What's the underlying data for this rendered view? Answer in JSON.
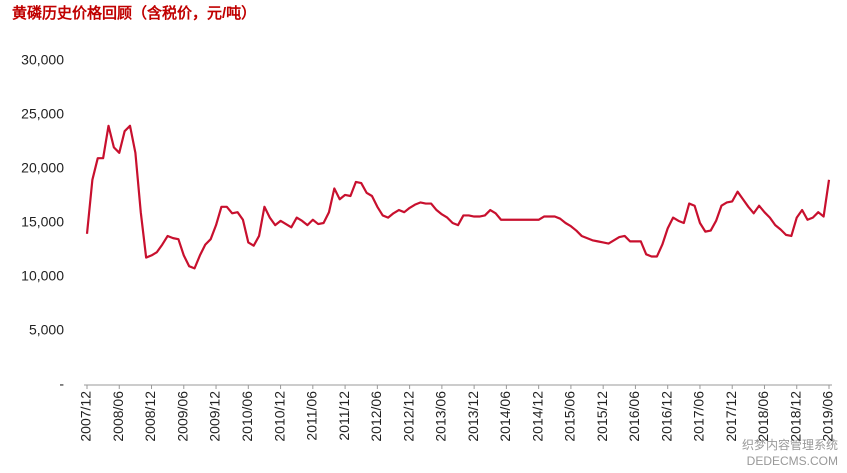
{
  "chart_data": {
    "type": "line",
    "title": "黄磷历史价格回顾（含税价，元/吨）",
    "categories": [
      "2007/12",
      null,
      null,
      null,
      null,
      null,
      "2008/06",
      null,
      null,
      null,
      null,
      null,
      "2008/12",
      null,
      null,
      null,
      null,
      null,
      "2009/06",
      null,
      null,
      null,
      null,
      null,
      "2009/12",
      null,
      null,
      null,
      null,
      null,
      "2010/06",
      null,
      null,
      null,
      null,
      null,
      "2010/12",
      null,
      null,
      null,
      null,
      null,
      "2011/06",
      null,
      null,
      null,
      null,
      null,
      "2011/12",
      null,
      null,
      null,
      null,
      null,
      "2012/06",
      null,
      null,
      null,
      null,
      null,
      "2012/12",
      null,
      null,
      null,
      null,
      null,
      "2013/06",
      null,
      null,
      null,
      null,
      null,
      "2013/12",
      null,
      null,
      null,
      null,
      null,
      "2014/06",
      null,
      null,
      null,
      null,
      null,
      "2014/12",
      null,
      null,
      null,
      null,
      null,
      "2015/06",
      null,
      null,
      null,
      null,
      null,
      "2015/12",
      null,
      null,
      null,
      null,
      null,
      "2016/06",
      null,
      null,
      null,
      null,
      null,
      "2016/12",
      null,
      null,
      null,
      null,
      null,
      "2017/06",
      null,
      null,
      null,
      null,
      null,
      "2017/12",
      null,
      null,
      null,
      null,
      null,
      "2018/06",
      null,
      null,
      null,
      null,
      null,
      "2018/12",
      null,
      null,
      null,
      null,
      null,
      "2019/06"
    ],
    "series": [
      {
        "color": "#c8102e",
        "values": [
          14000,
          19000,
          21000,
          21000,
          24000,
          22000,
          21500,
          23500,
          24000,
          21500,
          16000,
          11800,
          12000,
          12300,
          13000,
          13800,
          13600,
          13500,
          12000,
          11000,
          10800,
          12000,
          13000,
          13500,
          14800,
          16500,
          16500,
          15900,
          16000,
          15300,
          13200,
          12900,
          13800,
          16500,
          15500,
          14800,
          15200,
          14900,
          14600,
          15500,
          15200,
          14800,
          15300,
          14900,
          15000,
          16000,
          18200,
          17200,
          17600,
          17500,
          18800,
          18700,
          17800,
          17500,
          16500,
          15700,
          15500,
          15900,
          16200,
          16000,
          16400,
          16700,
          16900,
          16800,
          16800,
          16200,
          15800,
          15500,
          15000,
          14800,
          15700,
          15700,
          15600,
          15600,
          15700,
          16200,
          15900,
          15300,
          15300,
          15300,
          15300,
          15300,
          15300,
          15300,
          15300,
          15600,
          15600,
          15600,
          15400,
          15000,
          14700,
          14300,
          13800,
          13600,
          13400,
          13300,
          13200,
          13100,
          13400,
          13700,
          13800,
          13300,
          13300,
          13300,
          12100,
          11900,
          11900,
          13000,
          14500,
          15500,
          15200,
          15000,
          16800,
          16600,
          15000,
          14200,
          14300,
          15200,
          16600,
          16900,
          17000,
          17900,
          17200,
          16500,
          15900,
          16600,
          16000,
          15500,
          14800,
          14400,
          13900,
          13800,
          15500,
          16200,
          15300,
          15500,
          16000,
          15600,
          19000
        ]
      }
    ],
    "ylim": [
      0,
      30000
    ],
    "yticks": [
      {
        "value": 0,
        "label": "-"
      },
      {
        "value": 5000,
        "label": "5,000"
      },
      {
        "value": 10000,
        "label": "10,000"
      },
      {
        "value": 15000,
        "label": "15,000"
      },
      {
        "value": 20000,
        "label": "20,000"
      },
      {
        "value": 25000,
        "label": "25,000"
      },
      {
        "value": 30000,
        "label": "30,000"
      }
    ],
    "grid": false
  },
  "watermark": [
    "织梦内容管理系统",
    "DEDECMS.COM"
  ]
}
